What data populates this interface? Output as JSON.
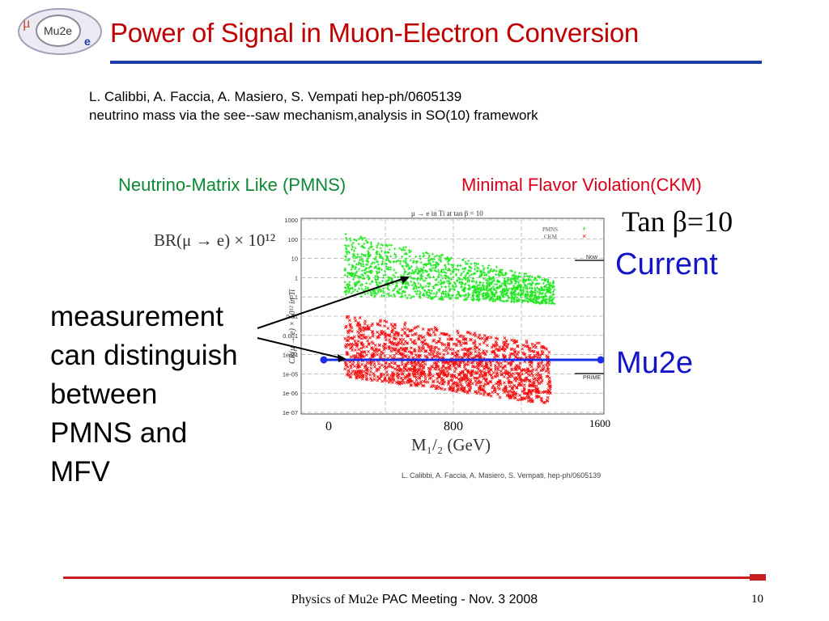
{
  "logo": {
    "mu": "μ",
    "center": "Mu2e",
    "e": "e"
  },
  "slide": {
    "title": "Power of Signal in Muon-Electron Conversion",
    "reference_line1": "L. Calibbi, A. Faccia, A. Masiero, S. Vempati hep-ph/0605139",
    "reference_line2": "neutrino mass via the see--saw mechanism,analysis in SO(10) framework",
    "pmns_header": "Neutrino-Matrix Like (PMNS)",
    "ckm_header": "Minimal Flavor Violation(CKM)",
    "tan_beta": "Tan β=10",
    "current_label": "Current",
    "mu2e_label": "Mu2e",
    "measurement_lines": [
      "measurement",
      "can distinguish",
      "between",
      "PMNS and",
      "MFV"
    ]
  },
  "plot": {
    "inner_title": "μ → e in Ti at tan β = 10",
    "br_label": "BR(μ → e) × 10¹²",
    "y_axis_title": "CR(μ → e) × 10¹² in Ti",
    "y_ticks": [
      "1000",
      "100",
      "10",
      "1",
      "0.1",
      "0.01",
      "0.001",
      "1e-04",
      "1e-05",
      "1e-06",
      "1e-07"
    ],
    "x_ticks": [
      "0",
      "800",
      "1600"
    ],
    "x_label": "M₁/₂ (GeV)",
    "legend_pmns": "PMNS",
    "legend_ckm": "CKM",
    "legend_marker_pmns": "+",
    "legend_marker_ckm": "×",
    "now_label": "Now",
    "prime_label": "PRIME",
    "citation": "L. Calibbi, A. Faccia, A. Masiero, S. Vempati, hep-ph/0605139",
    "colors": {
      "pmns": "#22e622",
      "ckm": "#f21010",
      "mu2e_line": "#1a2ee6"
    }
  },
  "footer": {
    "text_serif": "Physics of Mu2e",
    "text_sans": "PAC Meeting - Nov. 3 2008",
    "page_number": "10"
  }
}
